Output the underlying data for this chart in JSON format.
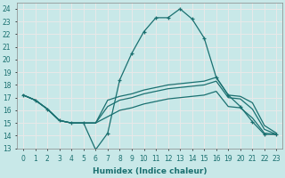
{
  "xlabel": "Humidex (Indice chaleur)",
  "background_color": "#c8e8e8",
  "grid_color": "#e8e8e8",
  "line_color": "#1a7070",
  "xlim": [
    -0.5,
    23.5
  ],
  "ylim": [
    13,
    24.5
  ],
  "yticks": [
    13,
    14,
    15,
    16,
    17,
    18,
    19,
    20,
    21,
    22,
    23,
    24
  ],
  "xtick_positions": [
    0,
    1,
    2,
    3,
    4,
    5,
    6,
    7,
    8,
    9,
    10,
    11,
    12,
    13,
    14,
    15,
    16,
    19,
    20,
    21,
    22,
    23
  ],
  "xtick_labels": [
    "0",
    "1",
    "2",
    "3",
    "4",
    "5",
    "6",
    "7",
    "8",
    "9",
    "10",
    "11",
    "12",
    "13",
    "14",
    "15",
    "16",
    "19",
    "20",
    "21",
    "22",
    "23"
  ],
  "lines": [
    {
      "x": [
        0,
        1,
        2,
        3,
        4,
        5,
        6,
        7,
        8,
        9,
        10,
        11,
        12,
        13,
        14,
        15,
        16,
        19,
        20,
        21,
        22,
        23
      ],
      "y": [
        17.2,
        16.8,
        16.1,
        15.2,
        15.0,
        15.0,
        12.9,
        14.2,
        18.4,
        20.5,
        22.2,
        23.3,
        23.3,
        24.0,
        23.2,
        21.7,
        18.6,
        17.2,
        16.3,
        15.1,
        14.1,
        14.1
      ],
      "marker": "+"
    },
    {
      "x": [
        0,
        1,
        2,
        3,
        4,
        5,
        6,
        7,
        8,
        9,
        10,
        11,
        12,
        13,
        14,
        15,
        16,
        19,
        20,
        21,
        22,
        23
      ],
      "y": [
        17.2,
        16.8,
        16.1,
        15.2,
        15.0,
        15.0,
        15.0,
        16.8,
        17.1,
        17.3,
        17.6,
        17.8,
        18.0,
        18.1,
        18.2,
        18.3,
        18.6,
        17.2,
        17.1,
        16.6,
        14.8,
        14.2
      ],
      "marker": null
    },
    {
      "x": [
        0,
        1,
        2,
        3,
        4,
        5,
        6,
        7,
        8,
        9,
        10,
        11,
        12,
        13,
        14,
        15,
        16,
        19,
        20,
        21,
        22,
        23
      ],
      "y": [
        17.2,
        16.8,
        16.1,
        15.2,
        15.0,
        15.0,
        15.0,
        16.3,
        16.8,
        17.0,
        17.3,
        17.5,
        17.7,
        17.8,
        17.9,
        18.0,
        18.3,
        17.0,
        16.9,
        16.1,
        14.5,
        14.1
      ],
      "marker": null
    },
    {
      "x": [
        0,
        1,
        2,
        3,
        4,
        5,
        6,
        7,
        8,
        9,
        10,
        11,
        12,
        13,
        14,
        15,
        16,
        19,
        20,
        21,
        22,
        23
      ],
      "y": [
        17.2,
        16.8,
        16.1,
        15.2,
        15.0,
        15.0,
        15.0,
        15.5,
        16.0,
        16.2,
        16.5,
        16.7,
        16.9,
        17.0,
        17.1,
        17.2,
        17.5,
        16.3,
        16.2,
        15.4,
        14.2,
        14.1
      ],
      "marker": null
    }
  ]
}
